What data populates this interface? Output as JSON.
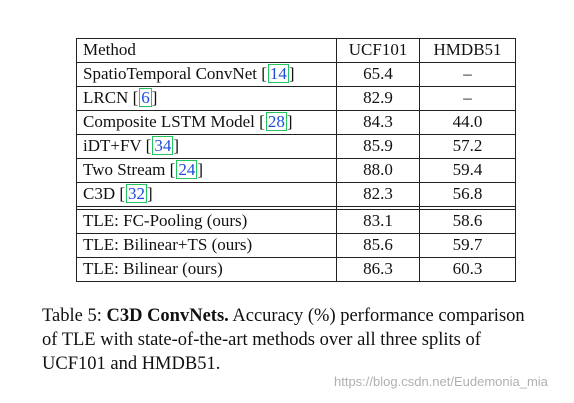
{
  "table": {
    "headers": [
      "Method",
      "UCF101",
      "HMDB51"
    ],
    "rows": [
      {
        "method": "SpatioTemporal ConvNet",
        "cite": "14",
        "ucf": "65.4",
        "hmdb": "–"
      },
      {
        "method": "LRCN",
        "cite": "6",
        "ucf": "82.9",
        "hmdb": "–"
      },
      {
        "method": "Composite LSTM Model",
        "cite": "28",
        "ucf": "84.3",
        "hmdb": "44.0"
      },
      {
        "method": "iDT+FV",
        "cite": "34",
        "ucf": "85.9",
        "hmdb": "57.2"
      },
      {
        "method": "Two Stream",
        "cite": "24",
        "ucf": "88.0",
        "hmdb": "59.4"
      },
      {
        "method": "C3D",
        "cite": "32",
        "ucf": "82.3",
        "hmdb": "56.8"
      }
    ],
    "ours_rows": [
      {
        "method": "TLE: FC-Pooling (ours)",
        "ucf": "83.1",
        "hmdb": "58.6"
      },
      {
        "method": "TLE: Bilinear+TS (ours)",
        "ucf": "85.6",
        "hmdb": "59.7"
      },
      {
        "method": "TLE: Bilinear (ours)",
        "ucf": "86.3",
        "hmdb": "60.3"
      }
    ]
  },
  "caption": {
    "label": "Table 5:",
    "title": "C3D ConvNets.",
    "text": "Accuracy (%) performance comparison of TLE with state-of-the-art methods over all three splits of UCF101 and HMDB51."
  },
  "watermark": "https://blog.csdn.net/Eudemonia_mia",
  "colors": {
    "cite_border": "#22c55e",
    "cite_text": "#1d4ed8"
  }
}
